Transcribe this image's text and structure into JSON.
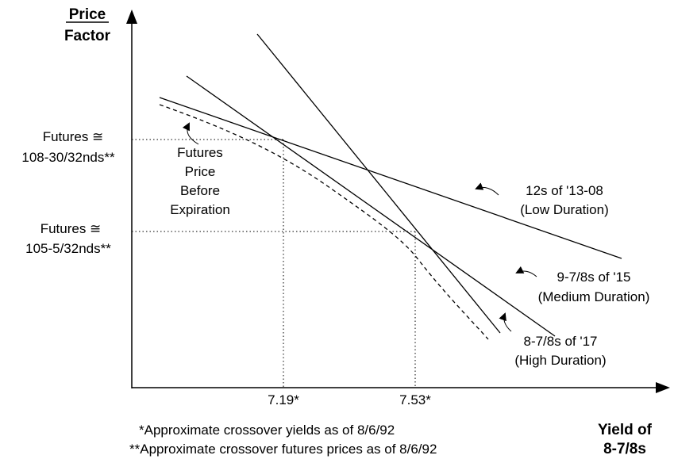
{
  "chart_data": {
    "type": "line",
    "ylabel": "Price Factor",
    "xlabel": [
      "Yield of",
      "8-7/8s"
    ],
    "x_ticks": [
      {
        "value": 7.19,
        "label": "7.19*"
      },
      {
        "value": 7.53,
        "label": "7.53*"
      }
    ],
    "y_marks": [
      {
        "id": "high",
        "lines": [
          "Futures  ≅",
          "108-30/32nds**"
        ]
      },
      {
        "id": "low",
        "lines": [
          "Futures  ≅",
          "105-5/32nds**"
        ]
      }
    ],
    "series": [
      {
        "id": "low",
        "lines": [
          "12s of '13-08",
          "(Low Duration)"
        ],
        "style": "solid"
      },
      {
        "id": "med",
        "lines": [
          "9-7/8s of '15",
          "(Medium Duration)"
        ],
        "style": "solid"
      },
      {
        "id": "high",
        "lines": [
          "8-7/8s of '17",
          "(High Duration)"
        ],
        "style": "solid"
      }
    ],
    "futures_curve": {
      "lines": [
        "Futures",
        "Price",
        "Before",
        "Expiration"
      ],
      "style": "dashed"
    },
    "footnotes": [
      "*Approximate crossover yields as of 8/6/92",
      "**Approximate crossover futures prices as of 8/6/92"
    ]
  }
}
